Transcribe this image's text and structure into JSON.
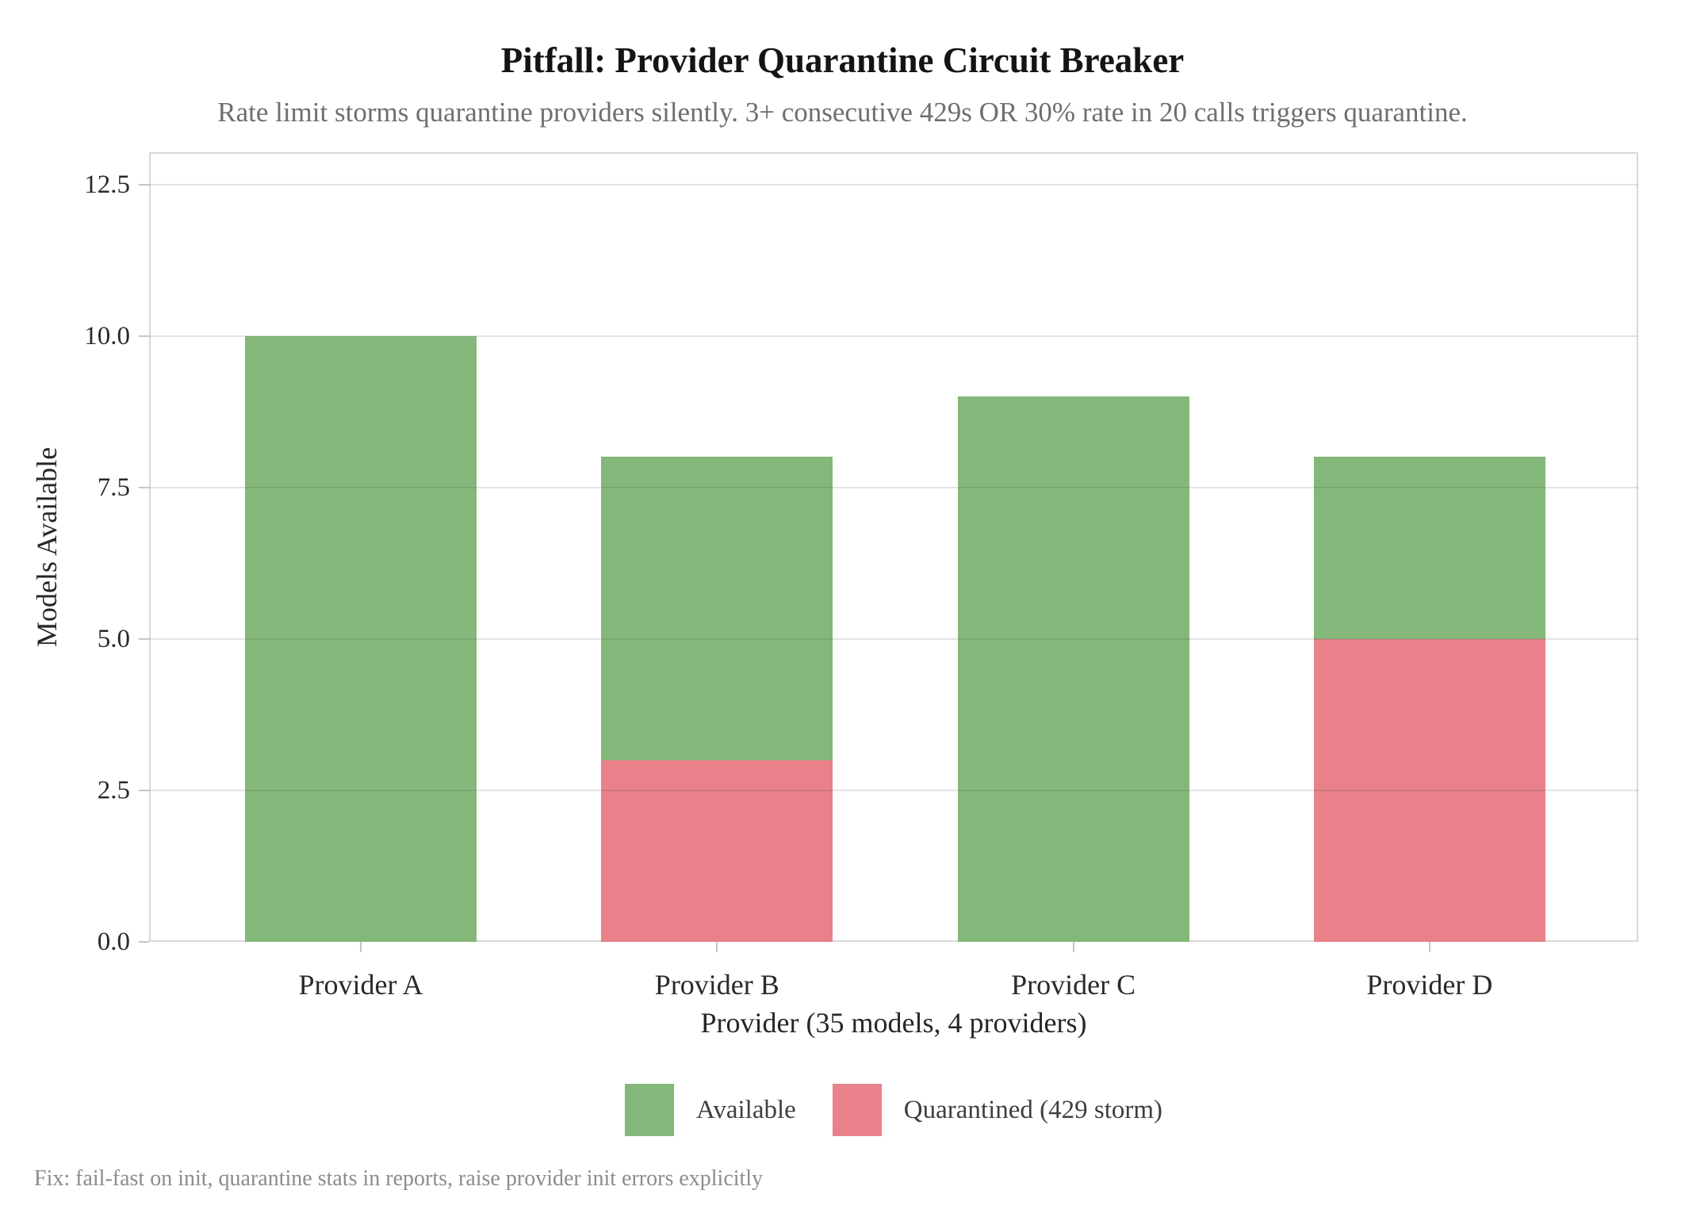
{
  "chart_data": {
    "type": "bar",
    "stacked": true,
    "title": "Pitfall: Provider Quarantine Circuit Breaker",
    "subtitle": "Rate limit storms quarantine providers silently. 3+ consecutive 429s OR 30% rate in 20 calls triggers quarantine.",
    "xlabel": "Provider (35 models, 4 providers)",
    "ylabel": "Models Available",
    "footer": "Fix: fail-fast on init, quarantine stats in reports, raise provider init errors explicitly",
    "categories": [
      "Provider A",
      "Provider B",
      "Provider C",
      "Provider D"
    ],
    "series": [
      {
        "name": "Quarantined (429 storm)",
        "color": "#e8818a",
        "values": [
          0,
          3,
          0,
          5
        ]
      },
      {
        "name": "Available",
        "color": "#84b87a",
        "values": [
          10,
          5,
          9,
          3
        ]
      }
    ],
    "yticks": [
      0.0,
      2.5,
      5.0,
      7.5,
      10.0,
      12.5
    ],
    "ylim": [
      0,
      13.03
    ],
    "grid": "horizontal",
    "legend": {
      "position": "bottom",
      "entries": [
        {
          "label": "Available",
          "color": "#84b87a"
        },
        {
          "label": "Quarantined (429 storm)",
          "color": "#e8818a"
        }
      ]
    }
  },
  "colors": {
    "available_green": "#84b87a",
    "quarantined_red": "#e8818a",
    "gridline": "#e8e8e8",
    "plot_border": "#d8d8d8",
    "title_text": "#141414",
    "subtitle_text": "#6e6e6e",
    "footer_text": "#8c8c8c"
  }
}
